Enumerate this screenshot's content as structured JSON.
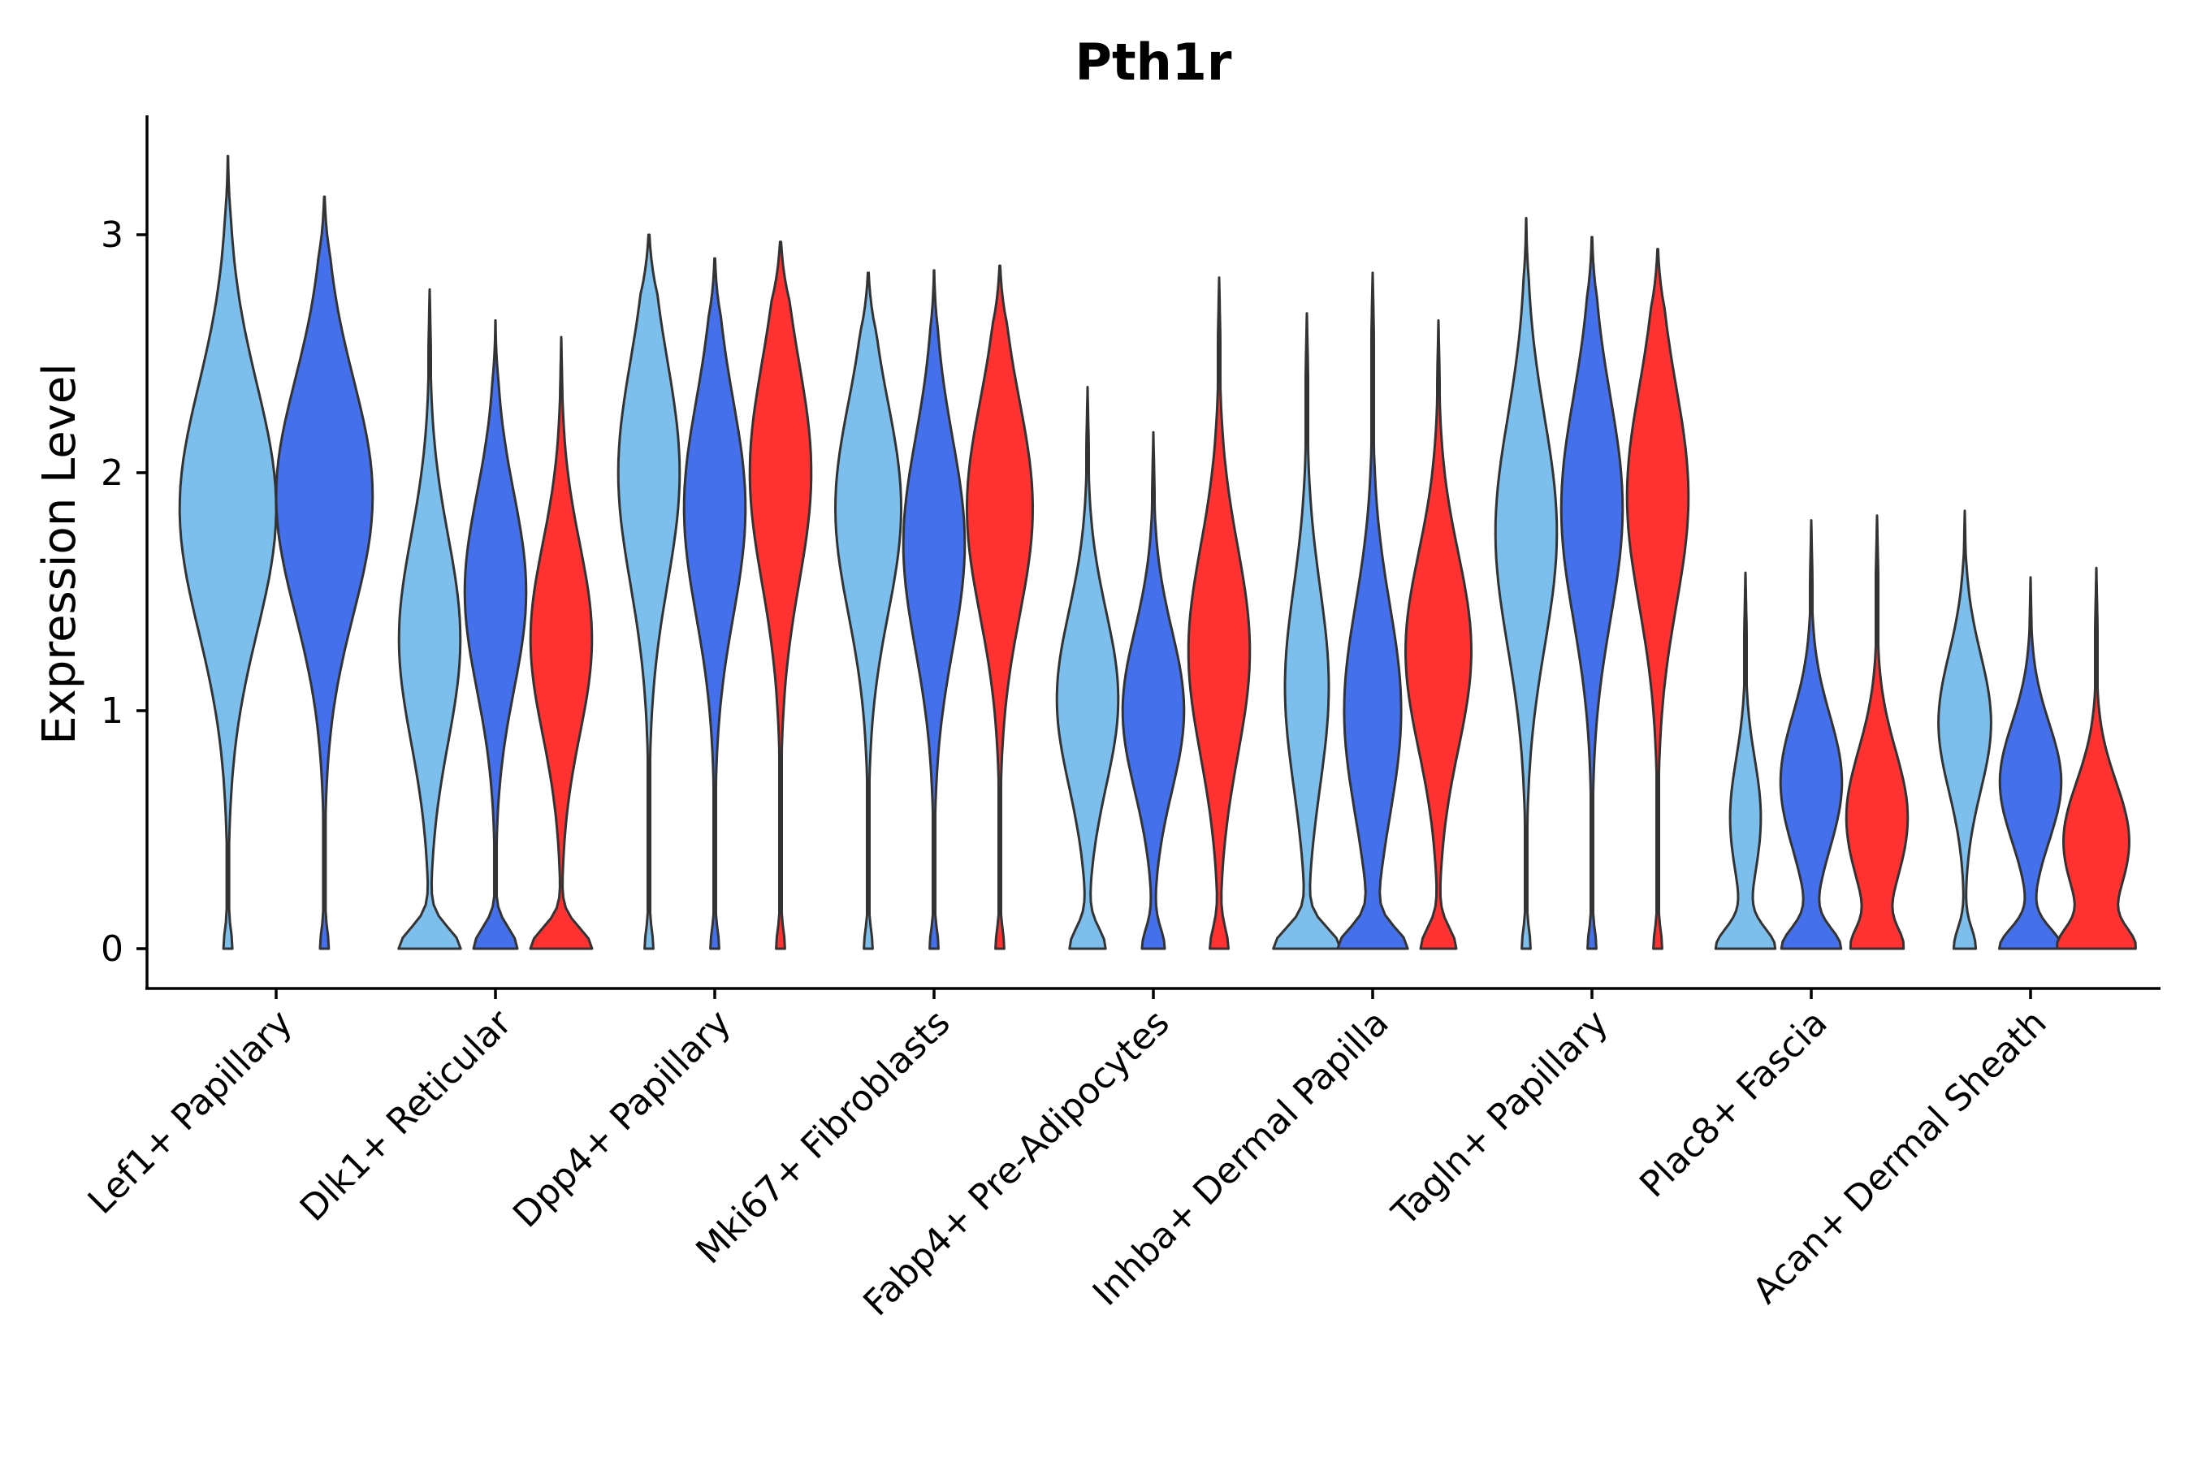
{
  "chart_data": {
    "type": "violin",
    "title": "Pth1r",
    "xlabel": "",
    "ylabel": "Expression Level",
    "ylim": [
      -0.17,
      3.5
    ],
    "yticks": [
      0,
      1,
      2,
      3
    ],
    "grid": false,
    "legend": "none",
    "colors": {
      "light-blue": "#7DBFEC",
      "blue": "#4470EC",
      "red": "#FF3131"
    },
    "categories": [
      "Lef1+ Papillary",
      "Dlk1+ Reticular",
      "Dpp4+ Papillary",
      "Mki67+ Fibroblasts",
      "Fabp4+ Pre-Adipocytes",
      "Inhba+ Dermal Papilla",
      "Tagln+ Papillary",
      "Plac8+ Fascia",
      "Acan+ Dermal Sheath"
    ],
    "violins": [
      {
        "category": 0,
        "offset": -0.22,
        "color": "light-blue",
        "max": 3.33,
        "peak": 1.85,
        "width": 0.22
      },
      {
        "category": 0,
        "offset": 0.22,
        "color": "blue",
        "max": 3.16,
        "peak": 1.9,
        "width": 0.22
      },
      {
        "category": 1,
        "offset": -0.3,
        "color": "light-blue",
        "max": 2.77,
        "peak": 1.3,
        "width": 0.14,
        "base_width": 0.14
      },
      {
        "category": 1,
        "offset": 0,
        "color": "blue",
        "max": 2.64,
        "peak": 1.5,
        "width": 0.14,
        "base_width": 0.1
      },
      {
        "category": 1,
        "offset": 0.3,
        "color": "red",
        "max": 2.57,
        "peak": 1.3,
        "width": 0.14,
        "base_width": 0.14
      },
      {
        "category": 2,
        "offset": -0.3,
        "color": "light-blue",
        "max": 3.0,
        "peak": 2.0,
        "width": 0.14
      },
      {
        "category": 2,
        "offset": 0,
        "color": "blue",
        "max": 2.9,
        "peak": 1.85,
        "width": 0.14
      },
      {
        "category": 2,
        "offset": 0.3,
        "color": "red",
        "max": 2.97,
        "peak": 2.0,
        "width": 0.14
      },
      {
        "category": 3,
        "offset": -0.3,
        "color": "light-blue",
        "max": 2.84,
        "peak": 1.85,
        "width": 0.15
      },
      {
        "category": 3,
        "offset": 0,
        "color": "blue",
        "max": 2.85,
        "peak": 1.7,
        "width": 0.14
      },
      {
        "category": 3,
        "offset": 0.3,
        "color": "red",
        "max": 2.87,
        "peak": 1.85,
        "width": 0.15
      },
      {
        "category": 4,
        "offset": -0.3,
        "color": "light-blue",
        "max": 2.36,
        "peak": 1.05,
        "width": 0.14,
        "base_width": 0.08
      },
      {
        "category": 4,
        "offset": 0,
        "color": "blue",
        "max": 2.17,
        "peak": 1.0,
        "width": 0.14,
        "base_width": 0.05
      },
      {
        "category": 4,
        "offset": 0.3,
        "color": "red",
        "max": 2.82,
        "peak": 1.25,
        "width": 0.14,
        "base_width": 0.04
      },
      {
        "category": 5,
        "offset": -0.3,
        "color": "light-blue",
        "max": 2.67,
        "peak": 1.1,
        "width": 0.1,
        "base_width": 0.15
      },
      {
        "category": 5,
        "offset": 0,
        "color": "blue",
        "max": 2.84,
        "peak": 1.0,
        "width": 0.13,
        "base_width": 0.15
      },
      {
        "category": 5,
        "offset": 0.3,
        "color": "red",
        "max": 2.64,
        "peak": 1.25,
        "width": 0.15,
        "base_width": 0.08
      },
      {
        "category": 6,
        "offset": -0.3,
        "color": "light-blue",
        "max": 3.07,
        "peak": 1.75,
        "width": 0.14
      },
      {
        "category": 6,
        "offset": 0,
        "color": "blue",
        "max": 2.99,
        "peak": 1.85,
        "width": 0.14
      },
      {
        "category": 6,
        "offset": 0.3,
        "color": "red",
        "max": 2.94,
        "peak": 1.9,
        "width": 0.14
      },
      {
        "category": 7,
        "offset": -0.3,
        "color": "light-blue",
        "max": 1.58,
        "peak": 0.55,
        "width": 0.07,
        "base_width": 0.13
      },
      {
        "category": 7,
        "offset": 0,
        "color": "blue",
        "max": 1.8,
        "peak": 0.7,
        "width": 0.14,
        "base_width": 0.13
      },
      {
        "category": 7,
        "offset": 0.3,
        "color": "red",
        "max": 1.82,
        "peak": 0.55,
        "width": 0.14,
        "base_width": 0.1
      },
      {
        "category": 8,
        "offset": -0.3,
        "color": "light-blue",
        "max": 1.84,
        "peak": 0.95,
        "width": 0.12,
        "base_width": 0.05
      },
      {
        "category": 8,
        "offset": 0,
        "color": "blue",
        "max": 1.56,
        "peak": 0.7,
        "width": 0.14,
        "base_width": 0.14
      },
      {
        "category": 8,
        "offset": 0.3,
        "color": "red",
        "max": 1.6,
        "peak": 0.45,
        "width": 0.15,
        "base_width": 0.15
      }
    ]
  }
}
